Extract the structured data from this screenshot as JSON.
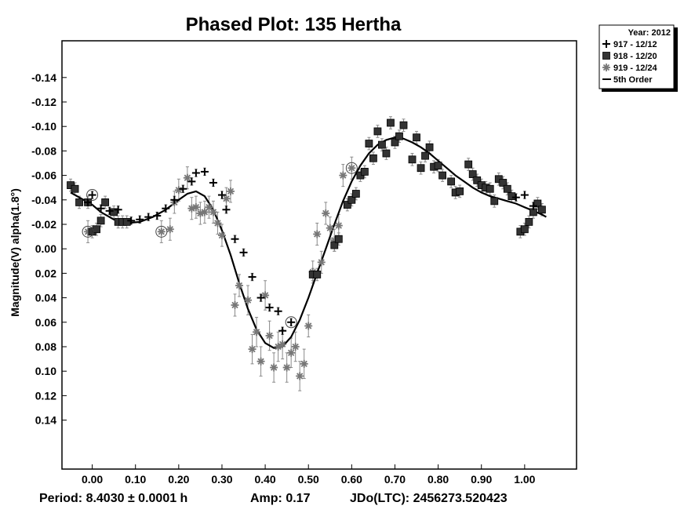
{
  "chart_data": {
    "type": "scatter",
    "title": "Phased Plot: 135 Hertha",
    "ylabel": "Magnitude(V) alpha(1.8°)",
    "xlabel": "",
    "xlim": [
      -0.07,
      1.12
    ],
    "ylim": [
      -0.17,
      0.18
    ],
    "y_inverted": true,
    "x_ticks": [
      "0.00",
      "0.10",
      "0.20",
      "0.30",
      "0.40",
      "0.50",
      "0.60",
      "0.70",
      "0.80",
      "0.90",
      "1.00"
    ],
    "y_ticks": [
      "-0.14",
      "-0.12",
      "-0.10",
      "-0.08",
      "-0.06",
      "-0.04",
      "-0.02",
      "0.00",
      "0.02",
      "0.04",
      "0.06",
      "0.08",
      "0.10",
      "0.12",
      "0.14"
    ],
    "legend": {
      "title": "Year: 2012",
      "placement": "outside-top-right",
      "entries": [
        {
          "label": "917 - 12/12",
          "marker": "plus"
        },
        {
          "label": "918 - 12/20",
          "marker": "square"
        },
        {
          "label": "919 - 12/24",
          "marker": "asterisk"
        },
        {
          "label": "5th Order",
          "marker": "line"
        }
      ]
    },
    "series": [
      {
        "name": "917 - 12/12",
        "marker": "plus",
        "color": "#000000",
        "points": [
          [
            -0.01,
            -0.038
          ],
          [
            0.0,
            -0.044
          ],
          [
            0.02,
            -0.033
          ],
          [
            0.04,
            -0.031
          ],
          [
            0.06,
            -0.032
          ],
          [
            0.09,
            -0.023
          ],
          [
            0.11,
            -0.024
          ],
          [
            0.13,
            -0.026
          ],
          [
            0.15,
            -0.027
          ],
          [
            0.17,
            -0.033
          ],
          [
            0.19,
            -0.04
          ],
          [
            0.21,
            -0.049
          ],
          [
            0.23,
            -0.055
          ],
          [
            0.24,
            -0.062
          ],
          [
            0.26,
            -0.063
          ],
          [
            0.28,
            -0.054
          ],
          [
            0.3,
            -0.044
          ],
          [
            0.31,
            -0.032
          ],
          [
            0.33,
            -0.008
          ],
          [
            0.35,
            0.003
          ],
          [
            0.37,
            0.023
          ],
          [
            0.39,
            0.04
          ],
          [
            0.41,
            0.048
          ],
          [
            0.43,
            0.051
          ],
          [
            0.44,
            0.067
          ],
          [
            0.46,
            0.06
          ],
          [
            0.98,
            -0.042
          ],
          [
            1.0,
            -0.044
          ],
          [
            1.02,
            -0.035
          ]
        ]
      },
      {
        "name": "918 - 12/20",
        "marker": "square",
        "color": "#333333",
        "points": [
          [
            -0.05,
            -0.052
          ],
          [
            -0.04,
            -0.049
          ],
          [
            -0.03,
            -0.038
          ],
          [
            -0.01,
            -0.038
          ],
          [
            0.0,
            -0.014
          ],
          [
            0.01,
            -0.016
          ],
          [
            0.02,
            -0.023
          ],
          [
            0.03,
            -0.038
          ],
          [
            0.05,
            -0.03
          ],
          [
            0.06,
            -0.022
          ],
          [
            0.07,
            -0.022
          ],
          [
            0.08,
            -0.022
          ],
          [
            0.51,
            0.021
          ],
          [
            0.52,
            0.021
          ],
          [
            0.56,
            -0.003
          ],
          [
            0.57,
            -0.008
          ],
          [
            0.59,
            -0.036
          ],
          [
            0.6,
            -0.04
          ],
          [
            0.61,
            -0.045
          ],
          [
            0.62,
            -0.06
          ],
          [
            0.63,
            -0.063
          ],
          [
            0.64,
            -0.086
          ],
          [
            0.65,
            -0.074
          ],
          [
            0.66,
            -0.096
          ],
          [
            0.67,
            -0.085
          ],
          [
            0.68,
            -0.078
          ],
          [
            0.69,
            -0.103
          ],
          [
            0.7,
            -0.087
          ],
          [
            0.71,
            -0.092
          ],
          [
            0.72,
            -0.101
          ],
          [
            0.74,
            -0.073
          ],
          [
            0.75,
            -0.091
          ],
          [
            0.76,
            -0.066
          ],
          [
            0.77,
            -0.076
          ],
          [
            0.78,
            -0.083
          ],
          [
            0.79,
            -0.067
          ],
          [
            0.8,
            -0.068
          ],
          [
            0.81,
            -0.06
          ],
          [
            0.83,
            -0.055
          ],
          [
            0.84,
            -0.046
          ],
          [
            0.85,
            -0.047
          ],
          [
            0.87,
            -0.069
          ],
          [
            0.88,
            -0.061
          ],
          [
            0.89,
            -0.056
          ],
          [
            0.9,
            -0.052
          ],
          [
            0.91,
            -0.05
          ],
          [
            0.92,
            -0.049
          ],
          [
            0.93,
            -0.039
          ],
          [
            0.94,
            -0.057
          ],
          [
            0.95,
            -0.054
          ],
          [
            0.96,
            -0.049
          ],
          [
            0.97,
            -0.043
          ],
          [
            0.99,
            -0.014
          ],
          [
            1.0,
            -0.016
          ],
          [
            1.01,
            -0.022
          ],
          [
            1.02,
            -0.03
          ],
          [
            1.03,
            -0.037
          ],
          [
            1.04,
            -0.032
          ]
        ]
      },
      {
        "name": "919 - 12/24",
        "marker": "asterisk",
        "color": "#777777",
        "points": [
          [
            -0.01,
            -0.014
          ],
          [
            0.16,
            -0.014
          ],
          [
            0.18,
            -0.016
          ],
          [
            0.19,
            -0.038
          ],
          [
            0.2,
            -0.048
          ],
          [
            0.22,
            -0.058
          ],
          [
            0.23,
            -0.033
          ],
          [
            0.24,
            -0.034
          ],
          [
            0.25,
            -0.029
          ],
          [
            0.26,
            -0.03
          ],
          [
            0.27,
            -0.034
          ],
          [
            0.28,
            -0.03
          ],
          [
            0.29,
            -0.021
          ],
          [
            0.3,
            -0.011
          ],
          [
            0.31,
            -0.041
          ],
          [
            0.32,
            -0.047
          ],
          [
            0.33,
            0.046
          ],
          [
            0.34,
            0.03
          ],
          [
            0.36,
            0.042
          ],
          [
            0.37,
            0.082
          ],
          [
            0.38,
            0.068
          ],
          [
            0.39,
            0.092
          ],
          [
            0.4,
            0.038
          ],
          [
            0.41,
            0.071
          ],
          [
            0.42,
            0.097
          ],
          [
            0.43,
            0.08
          ],
          [
            0.44,
            0.078
          ],
          [
            0.45,
            0.097
          ],
          [
            0.46,
            0.085
          ],
          [
            0.47,
            0.08
          ],
          [
            0.48,
            0.104
          ],
          [
            0.49,
            0.094
          ],
          [
            0.5,
            0.063
          ],
          [
            0.51,
            0.019
          ],
          [
            0.52,
            -0.012
          ],
          [
            0.53,
            0.011
          ],
          [
            0.54,
            -0.029
          ],
          [
            0.55,
            -0.017
          ],
          [
            0.56,
            -0.007
          ],
          [
            0.57,
            -0.019
          ],
          [
            0.58,
            -0.06
          ],
          [
            0.6,
            -0.066
          ]
        ]
      }
    ],
    "fit": {
      "name": "5th Order",
      "x": [
        -0.05,
        -0.02,
        0.0,
        0.02,
        0.05,
        0.08,
        0.11,
        0.14,
        0.17,
        0.2,
        0.22,
        0.24,
        0.26,
        0.28,
        0.3,
        0.32,
        0.34,
        0.36,
        0.38,
        0.4,
        0.42,
        0.44,
        0.46,
        0.48,
        0.5,
        0.52,
        0.54,
        0.56,
        0.58,
        0.6,
        0.62,
        0.64,
        0.66,
        0.68,
        0.7,
        0.72,
        0.74,
        0.76,
        0.78,
        0.8,
        0.82,
        0.84,
        0.86,
        0.88,
        0.9,
        0.92,
        0.94,
        0.96,
        0.98,
        1.0,
        1.02,
        1.04,
        1.05
      ],
      "y": [
        -0.046,
        -0.04,
        -0.036,
        -0.03,
        -0.024,
        -0.021,
        -0.022,
        -0.026,
        -0.032,
        -0.04,
        -0.045,
        -0.047,
        -0.043,
        -0.032,
        -0.015,
        0.005,
        0.028,
        0.049,
        0.066,
        0.077,
        0.081,
        0.08,
        0.072,
        0.058,
        0.04,
        0.02,
        0.0,
        -0.02,
        -0.039,
        -0.055,
        -0.068,
        -0.078,
        -0.085,
        -0.089,
        -0.091,
        -0.09,
        -0.087,
        -0.083,
        -0.078,
        -0.072,
        -0.066,
        -0.06,
        -0.055,
        -0.05,
        -0.046,
        -0.043,
        -0.041,
        -0.039,
        -0.037,
        -0.034,
        -0.031,
        -0.028,
        -0.026
      ]
    },
    "marked_points": [
      [
        0.0,
        -0.044
      ],
      [
        -0.01,
        -0.014
      ],
      [
        0.16,
        -0.014
      ],
      [
        0.46,
        0.06
      ],
      [
        0.6,
        -0.066
      ]
    ]
  },
  "footer": {
    "period": "Period: 8.4030 ± 0.0001 h",
    "amp": "Amp: 0.17",
    "jdo": "JDo(LTC): 2456273.520423"
  }
}
